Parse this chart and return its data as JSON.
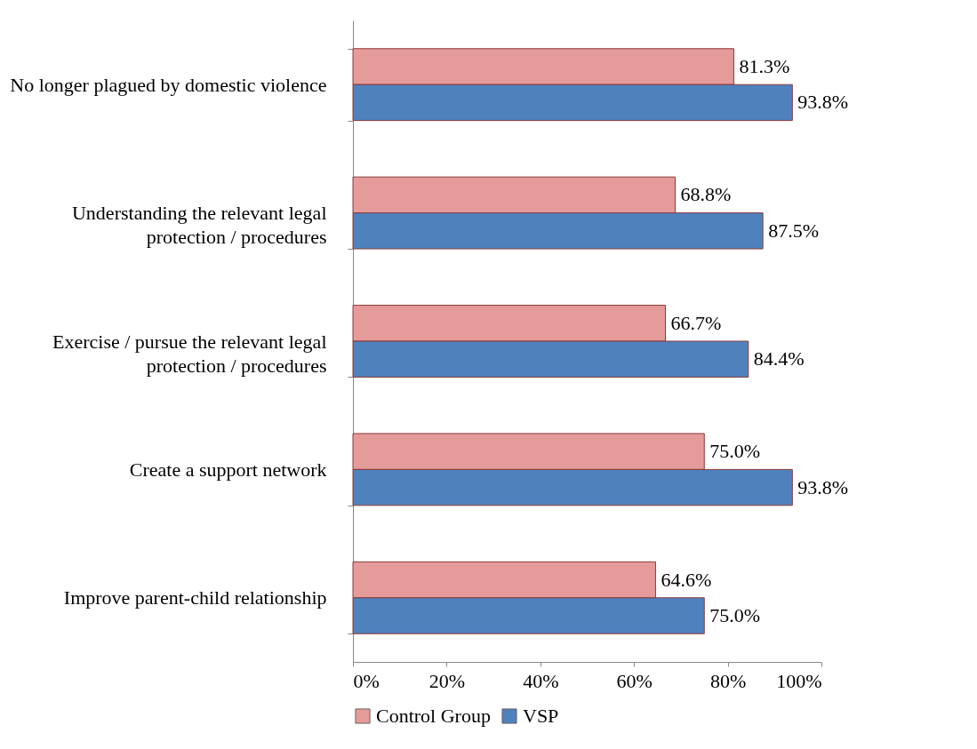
{
  "chart_data": {
    "type": "bar",
    "orientation": "horizontal",
    "categories": [
      "No longer plagued by domestic violence",
      "Understanding the relevant legal protection / procedures",
      "Exercise / pursue the relevant legal protection / procedures",
      "Create a support network",
      "Improve parent-child relationship"
    ],
    "series": [
      {
        "name": "Control Group",
        "color": "#e59b99",
        "values": [
          81.3,
          68.8,
          66.7,
          75.0,
          64.6
        ],
        "value_labels": [
          "81.3%",
          "68.8%",
          "66.7%",
          "75.0%",
          "64.6%"
        ]
      },
      {
        "name": "VSP",
        "color": "#4f81bd",
        "values": [
          93.8,
          87.5,
          84.4,
          93.8,
          75.0
        ],
        "value_labels": [
          "93.8%",
          "87.5%",
          "84.4%",
          "93.8%",
          "75.0%"
        ]
      }
    ],
    "xlim": [
      0,
      100
    ],
    "xticks": [
      {
        "value": 0,
        "label": "0%"
      },
      {
        "value": 20,
        "label": "20%"
      },
      {
        "value": 40,
        "label": "40%"
      },
      {
        "value": 60,
        "label": "60%"
      },
      {
        "value": 80,
        "label": "80%"
      },
      {
        "value": 100,
        "label": "100%"
      }
    ],
    "legend": "bottom"
  }
}
